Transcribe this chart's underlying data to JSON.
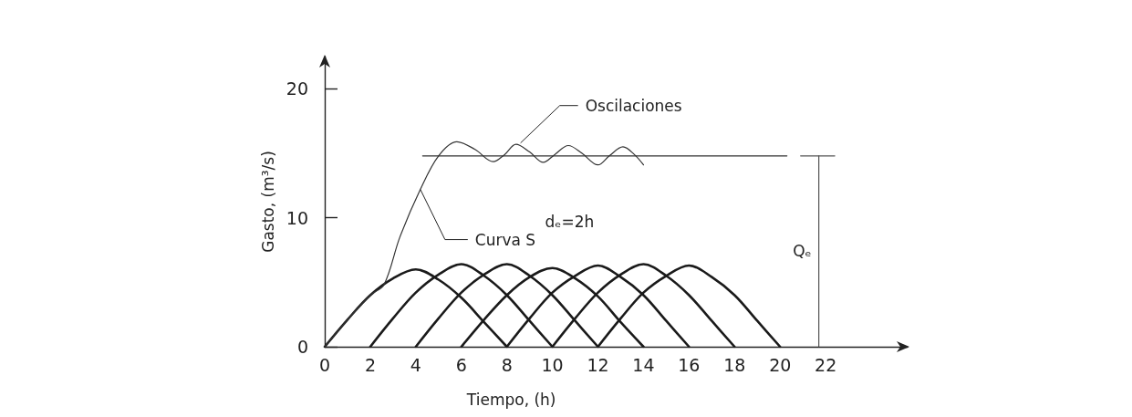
{
  "chart_data": {
    "type": "line",
    "xlabel": "Tiempo, (h)",
    "ylabel": "Gasto, (m³/s)",
    "xlim": [
      0,
      25.6
    ],
    "xticks": [
      0,
      2,
      4,
      6,
      8,
      10,
      12,
      14,
      16,
      18,
      20,
      22
    ],
    "ylim": [
      0,
      22.5
    ],
    "yticks": [
      0,
      10,
      20
    ],
    "marker": "none",
    "line_style": "solid",
    "series": [
      {
        "color": "#1a1a1a",
        "x": [
          0,
          1,
          2,
          3,
          4,
          5,
          6,
          7,
          8
        ],
        "values": [
          0,
          2.1,
          4.0,
          5.3,
          6.0,
          5.2,
          3.8,
          1.9,
          0
        ]
      },
      {
        "color": "#1a1a1a",
        "x": [
          2,
          3,
          4,
          5,
          6,
          7,
          8,
          9,
          10
        ],
        "values": [
          0,
          2.2,
          4.2,
          5.6,
          6.4,
          5.5,
          4.0,
          2.0,
          0
        ]
      },
      {
        "color": "#1a1a1a",
        "x": [
          4,
          5,
          6,
          7,
          8,
          9,
          10,
          11,
          12
        ],
        "values": [
          0,
          2.2,
          4.2,
          5.6,
          6.4,
          5.5,
          4.0,
          2.0,
          0
        ]
      },
      {
        "color": "#1a1a1a",
        "x": [
          6,
          7,
          8,
          9,
          10,
          11,
          12,
          13,
          14
        ],
        "values": [
          0,
          2.1,
          4.0,
          5.4,
          6.1,
          5.3,
          3.9,
          1.9,
          0
        ]
      },
      {
        "color": "#1a1a1a",
        "x": [
          8,
          9,
          10,
          11,
          12,
          13,
          14,
          15,
          16
        ],
        "values": [
          0,
          2.2,
          4.2,
          5.5,
          6.3,
          5.4,
          4.0,
          2.0,
          0
        ]
      },
      {
        "color": "#1a1a1a",
        "x": [
          10,
          11,
          12,
          13,
          14,
          15,
          16,
          17,
          18
        ],
        "values": [
          0,
          2.2,
          4.2,
          5.6,
          6.4,
          5.5,
          4.0,
          2.0,
          0
        ]
      },
      {
        "color": "#1a1a1a",
        "x": [
          12,
          13,
          14,
          15,
          16,
          17,
          18,
          19,
          20
        ],
        "values": [
          0,
          2.2,
          4.2,
          5.5,
          6.3,
          5.4,
          4.0,
          2.0,
          0
        ]
      },
      {
        "color": "#333333",
        "x": [
          0,
          1,
          2,
          2.6,
          3.3,
          4.2,
          5.0,
          5.8,
          6.6,
          7.4,
          7.9,
          8.4,
          9.0,
          9.6,
          10.1,
          10.7,
          11.3,
          12.0,
          12.5,
          13.1,
          13.6,
          14.0
        ],
        "values": [
          0,
          2.1,
          4.0,
          4.8,
          8.5,
          12.2,
          14.8,
          15.9,
          15.3,
          14.35,
          14.9,
          15.7,
          15.1,
          14.3,
          14.9,
          15.6,
          15.0,
          14.1,
          14.8,
          15.5,
          14.9,
          14.1
        ]
      },
      {
        "color": "#333333",
        "x": [
          4.3,
          20.3
        ],
        "values": [
          14.8,
          14.8
        ]
      },
      {
        "color": "#555555",
        "x": [
          20.9,
          22.4
        ],
        "values": [
          14.8,
          14.8
        ]
      },
      {
        "color": "#555555",
        "x": [
          21.7,
          21.7
        ],
        "values": [
          0,
          14.8
        ]
      }
    ],
    "annotations": [
      {
        "text": "Oscilaciones",
        "x": 8.6,
        "y": 15.8
      },
      {
        "text": "Curva S",
        "x": 4.2,
        "y": 12.2
      },
      "dₑ=2h",
      {
        "text": "Qₑ",
        "x": 21.7,
        "y": 7.4
      }
    ]
  }
}
